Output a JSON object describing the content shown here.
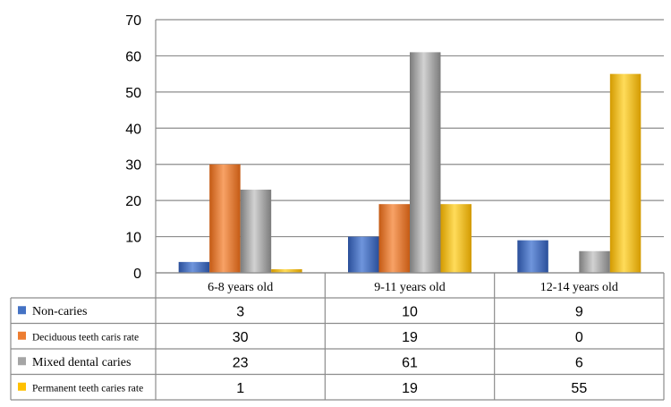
{
  "chart_data": {
    "type": "bar",
    "categories": [
      "6-8 years old",
      "9-11 years old",
      "12-14 years old"
    ],
    "series": [
      {
        "name": "Non-caries",
        "values": [
          3,
          10,
          9
        ],
        "color": "#4472C4"
      },
      {
        "name": "Deciduous teeth caris rate",
        "values": [
          30,
          19,
          0
        ],
        "color": "#ED7D31"
      },
      {
        "name": "Mixed dental caries",
        "values": [
          23,
          61,
          6
        ],
        "color": "#A5A5A5"
      },
      {
        "name": "Permanent teeth caries rate",
        "values": [
          1,
          19,
          55
        ],
        "color": "#FFC000"
      }
    ],
    "ylim": [
      0,
      70
    ],
    "yticks": [
      0,
      10,
      20,
      30,
      40,
      50,
      60,
      70
    ],
    "grid": true,
    "legend": "data-table",
    "data_table": true
  }
}
